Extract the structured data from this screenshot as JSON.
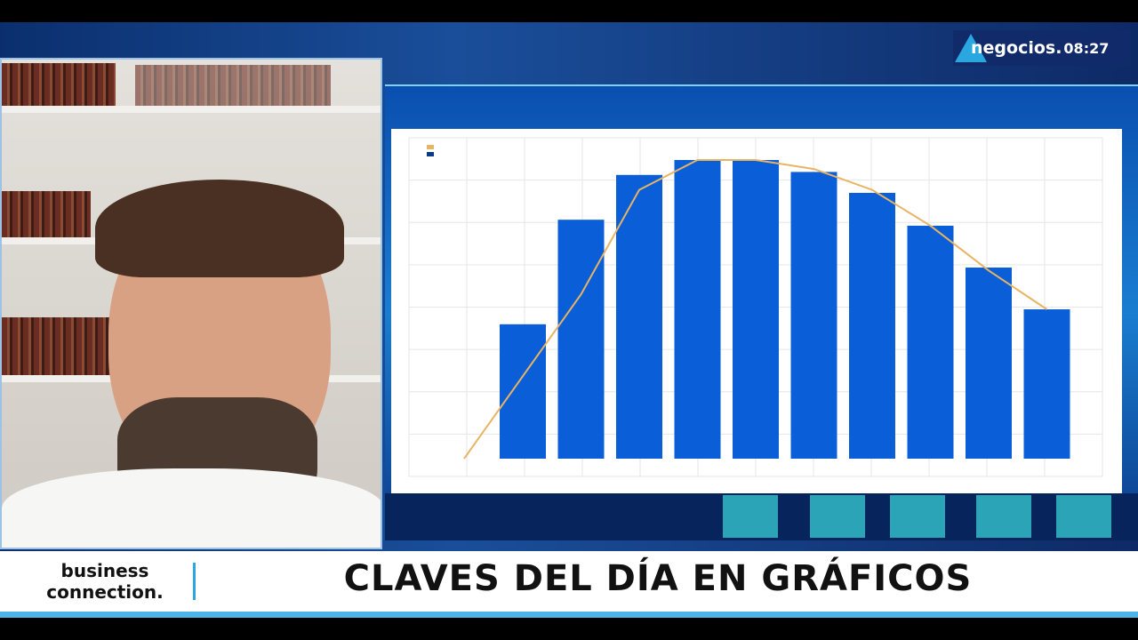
{
  "channel": {
    "logo": "negocios.",
    "time": "08:27"
  },
  "ticker": {
    "brand_line1": "business",
    "brand_line2": "connection.",
    "headline": "CLAVES DEL DÍA EN GRÁFICOS"
  },
  "colors": {
    "bar": "#0a5fd8",
    "line": "#e8b463",
    "ticker_accent": "#2aa6e0"
  },
  "chart_data": {
    "type": "bar",
    "note_series": [
      "bar",
      "line"
    ],
    "bar_values_relative": [
      0.45,
      0.8,
      0.95,
      1.0,
      1.0,
      0.96,
      0.89,
      0.78,
      0.64,
      0.5
    ],
    "line_values_relative": [
      0.0,
      0.55,
      0.9,
      1.0,
      1.0,
      0.97,
      0.9,
      0.78,
      0.63,
      0.5
    ],
    "grid": true,
    "legend_position": "top-left"
  }
}
